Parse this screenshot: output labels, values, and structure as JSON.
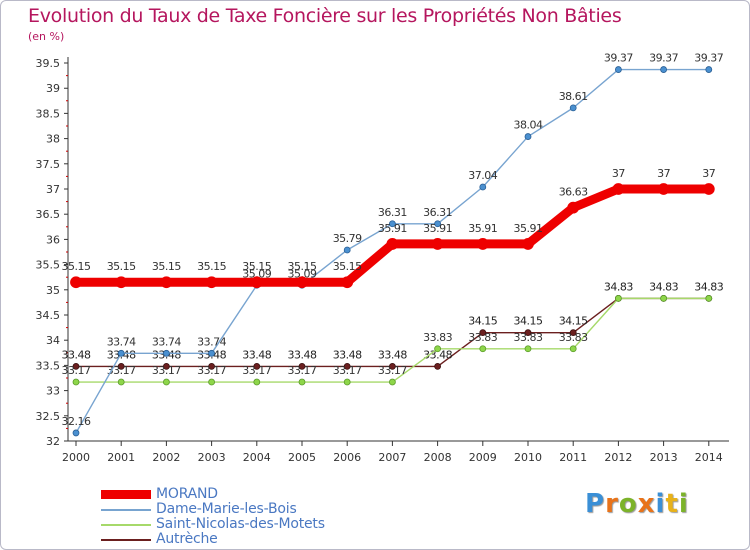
{
  "chart_data": {
    "type": "line",
    "title": "Evolution du Taux de Taxe Foncière sur les Propriétés Non Bâties",
    "ylabel": "(en %)",
    "xlabel": "",
    "ylim": [
      32,
      39.5
    ],
    "y_ticks": [
      "32",
      "32.5",
      "33",
      "33.5",
      "34",
      "34.5",
      "35",
      "35.5",
      "36",
      "36.5",
      "37",
      "37.5",
      "38",
      "38.5",
      "39",
      "39.5"
    ],
    "categories": [
      "2000",
      "2001",
      "2002",
      "2003",
      "2004",
      "2005",
      "2006",
      "2007",
      "2008",
      "2009",
      "2010",
      "2011",
      "2012",
      "2013",
      "2014"
    ],
    "series": [
      {
        "name": "Autrèche",
        "color": "#6b1f1f",
        "values": [
          33.48,
          33.48,
          33.48,
          33.48,
          33.48,
          33.48,
          33.48,
          33.48,
          33.48,
          34.15,
          34.15,
          34.15,
          34.83,
          34.83,
          34.83
        ],
        "labels": [
          "33.48",
          "33.48",
          "33.48",
          "33.48",
          "33.48",
          "33.48",
          "33.48",
          "33.48",
          "33.48",
          "34.15",
          "34.15",
          "34.15",
          "34.83",
          "34.83",
          "34.83"
        ]
      },
      {
        "name": "Saint-Nicolas-des-Motets",
        "color": "#a6d96a",
        "values": [
          33.17,
          33.17,
          33.17,
          33.17,
          33.17,
          33.17,
          33.17,
          33.17,
          33.83,
          33.83,
          33.83,
          33.83,
          34.83,
          34.83,
          34.83
        ],
        "labels": [
          "33.17",
          "33.17",
          "33.17",
          "33.17",
          "33.17",
          "33.17",
          "33.17",
          "33.17",
          "33.83",
          "33.83",
          "33.83",
          "33.83",
          "",
          "",
          ""
        ]
      },
      {
        "name": "Dame-Marie-les-Bois",
        "color": "#78a4d0",
        "values": [
          32.16,
          33.74,
          33.74,
          33.74,
          35.09,
          35.09,
          35.79,
          36.31,
          36.31,
          37.04,
          38.04,
          38.61,
          39.37,
          39.37,
          39.37
        ],
        "labels": [
          "32.16",
          "33.74",
          "33.74",
          "33.74",
          "35.09",
          "35.09",
          "35.79",
          "36.31",
          "36.31",
          "37.04",
          "38.04",
          "38.61",
          "39.37",
          "39.37",
          "39.37"
        ]
      },
      {
        "name": "MORAND",
        "color": "#ee0000",
        "values": [
          35.15,
          35.15,
          35.15,
          35.15,
          35.15,
          35.15,
          35.15,
          35.91,
          35.91,
          35.91,
          35.91,
          36.63,
          37,
          37,
          37
        ],
        "labels": [
          "35.15",
          "35.15",
          "35.15",
          "35.15",
          "35.15",
          "35.15",
          "35.15",
          "35.91",
          "35.91",
          "35.91",
          "35.91",
          "36.63",
          "37",
          "37",
          "37"
        ]
      }
    ],
    "legend": [
      "MORAND",
      "Dame-Marie-les-Bois",
      "Saint-Nicolas-des-Motets",
      "Autrèche"
    ],
    "legend_position": "bottom-left",
    "grid": false
  },
  "logo": {
    "text": "Proxiti"
  }
}
